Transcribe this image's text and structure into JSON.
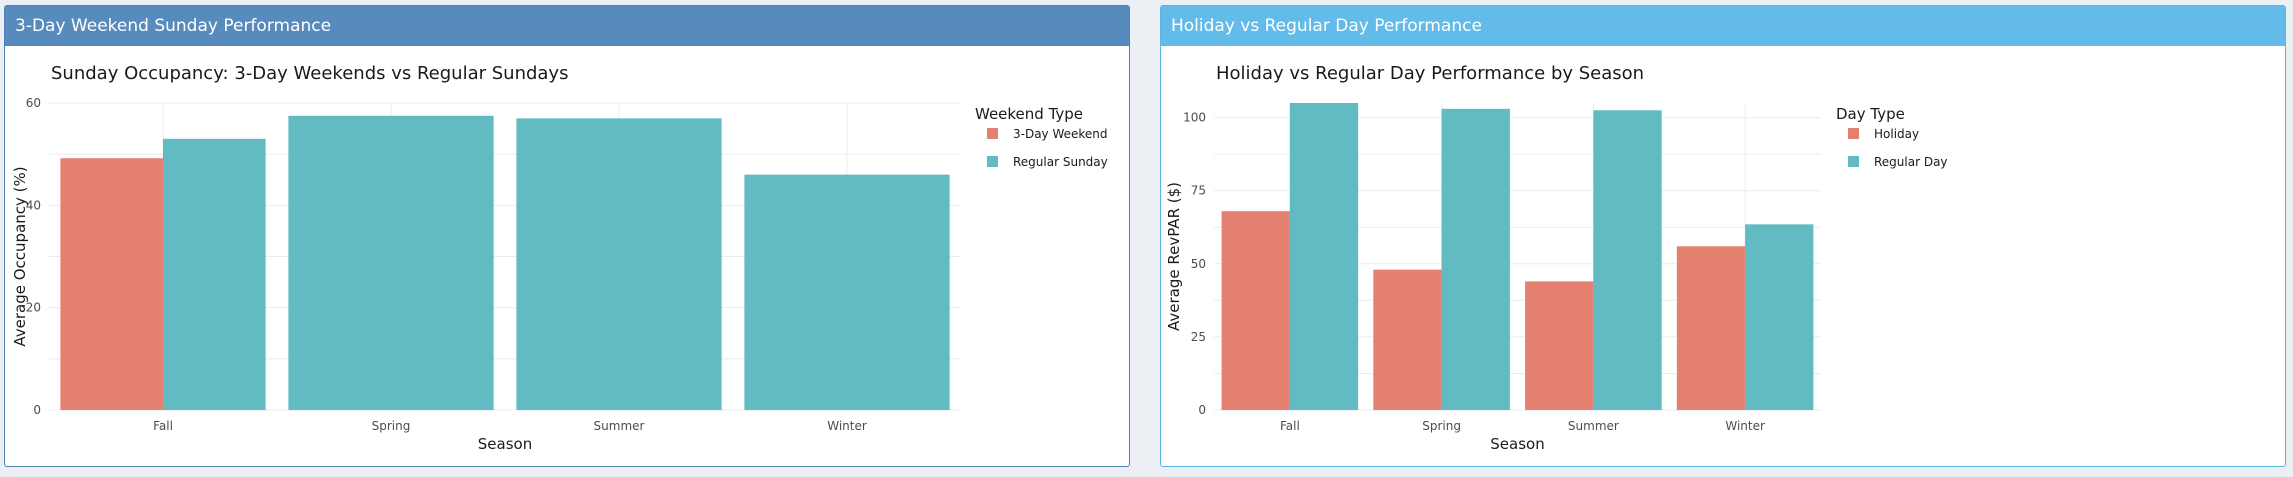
{
  "panels": [
    {
      "title": "3-Day Weekend Sunday Performance",
      "header_color": "#578bbd"
    },
    {
      "title": "Holiday vs Regular Day Performance",
      "header_color": "#63bbe9"
    }
  ],
  "colors": {
    "series_a": "#e48070",
    "series_b": "#62bac2"
  },
  "chart_data": [
    {
      "type": "bar",
      "title": "Sunday Occupancy: 3-Day Weekends vs Regular Sundays",
      "xlabel": "Season",
      "ylabel": "Average Occupancy (%)",
      "categories": [
        "Fall",
        "Spring",
        "Summer",
        "Winter"
      ],
      "ylim": [
        0,
        60
      ],
      "yticks": [
        0,
        20,
        40,
        60
      ],
      "legend": {
        "title": "Weekend Type",
        "position": "right"
      },
      "grid": true,
      "series": [
        {
          "name": "3-Day Weekend",
          "color": "#e48070",
          "values": [
            49.2,
            null,
            null,
            null
          ]
        },
        {
          "name": "Regular Sunday",
          "color": "#62bac2",
          "values": [
            53,
            57.5,
            57,
            46
          ]
        }
      ]
    },
    {
      "type": "bar",
      "title": "Holiday vs Regular Day Performance by Season",
      "xlabel": "Season",
      "ylabel": "Average RevPAR ($)",
      "categories": [
        "Fall",
        "Spring",
        "Summer",
        "Winter"
      ],
      "ylim": [
        0,
        105
      ],
      "yticks": [
        0,
        25,
        50,
        75,
        100
      ],
      "legend": {
        "title": "Day Type",
        "position": "right"
      },
      "grid": true,
      "series": [
        {
          "name": "Holiday",
          "color": "#e48070",
          "values": [
            68,
            48,
            44,
            56
          ]
        },
        {
          "name": "Regular Day",
          "color": "#62bac2",
          "values": [
            105,
            103,
            102.5,
            63.5
          ]
        }
      ]
    }
  ]
}
